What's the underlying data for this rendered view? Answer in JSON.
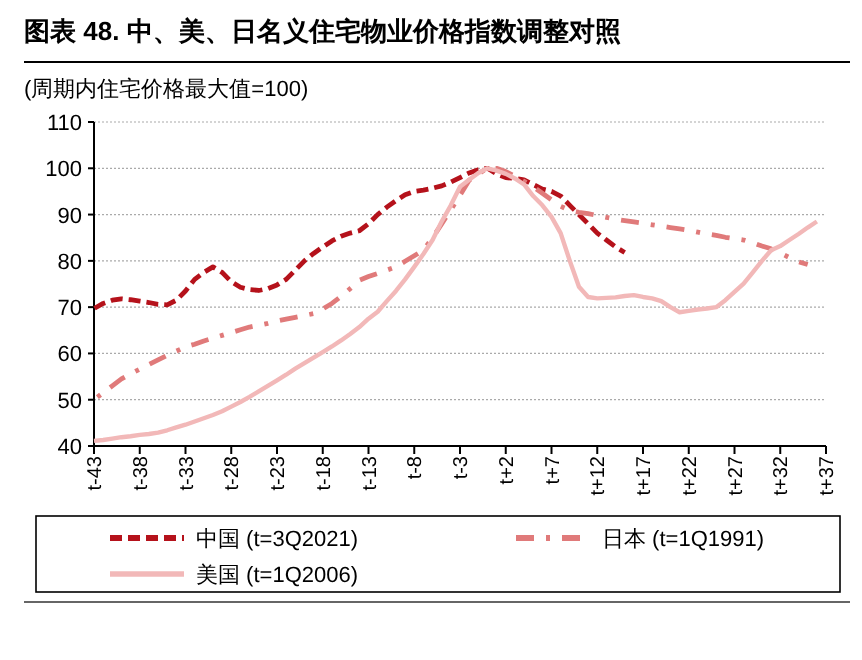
{
  "chart_data": {
    "type": "line",
    "title": "图表 48. 中、美、日名义住宅物业价格指数调整对照",
    "ylabel": "(周期内住宅价格最大值=100)",
    "categories": [
      "t-43",
      null,
      null,
      null,
      null,
      "t-38",
      null,
      null,
      null,
      null,
      "t-33",
      null,
      null,
      null,
      null,
      "t-28",
      null,
      null,
      null,
      null,
      "t-23",
      null,
      null,
      null,
      null,
      "t-18",
      null,
      null,
      null,
      null,
      "t-13",
      null,
      null,
      null,
      null,
      "t-8",
      null,
      null,
      null,
      null,
      "t-3",
      null,
      null,
      null,
      null,
      "t+2",
      null,
      null,
      null,
      null,
      "t+7",
      null,
      null,
      null,
      null,
      "t+12",
      null,
      null,
      null,
      null,
      "t+17",
      null,
      null,
      null,
      null,
      "t+22",
      null,
      null,
      null,
      null,
      "t+27",
      null,
      null,
      null,
      null,
      "t+32",
      null,
      null,
      null,
      null,
      "t+37"
    ],
    "ylim": [
      40,
      110
    ],
    "yticks": [
      40,
      50,
      60,
      70,
      80,
      90,
      100,
      110
    ],
    "grid": "y",
    "legend": "bottom",
    "series": [
      {
        "name": "中国 (t=3Q2021)",
        "color": "#b5121b",
        "line_style": "dashed",
        "values": [
          69.7,
          70.8,
          71.5,
          71.8,
          71.6,
          71.3,
          71,
          70.6,
          70.5,
          71.5,
          73.5,
          76,
          77.5,
          78.7,
          77.5,
          75.5,
          74.3,
          73.8,
          73.6,
          74,
          74.8,
          76,
          78,
          80,
          81.6,
          83,
          84.3,
          85.3,
          86,
          86.5,
          88,
          90,
          91.6,
          93,
          94.3,
          95,
          95.3,
          95.7,
          96.2,
          97,
          98,
          99,
          99.7,
          100,
          98.8,
          98,
          97.8,
          97.5,
          96.5,
          95.5,
          95,
          94,
          92,
          90,
          88,
          86,
          84.5,
          83,
          81.8,
          null,
          null,
          null,
          null,
          null,
          null,
          null,
          null,
          null,
          null,
          null,
          null,
          null,
          null,
          null,
          null,
          null,
          null,
          null,
          null,
          null,
          null
        ]
      },
      {
        "name": "日本 (t=1Q1991)",
        "color": "#e07a7a",
        "line_style": "dashdot",
        "values": [
          50,
          51.5,
          53,
          54.5,
          55.6,
          56.6,
          57.6,
          58.6,
          59.6,
          60.5,
          61.4,
          62,
          62.7,
          63.3,
          63.9,
          64.5,
          65.1,
          65.7,
          66.1,
          66.5,
          67,
          67.4,
          67.8,
          68.2,
          68.6,
          69.6,
          70.8,
          72.3,
          74,
          75.8,
          76.6,
          77.3,
          78,
          78.7,
          79.9,
          81.1,
          82.3,
          85,
          88,
          91,
          94.2,
          97.4,
          98.8,
          100,
          100,
          99.3,
          98.3,
          97.2,
          96,
          94.6,
          93.2,
          91.8,
          90.9,
          90.5,
          90.2,
          89.8,
          89.4,
          89,
          88.7,
          88.4,
          88.1,
          87.8,
          87.5,
          87.2,
          86.9,
          86.6,
          86.2,
          85.8,
          85.5,
          85.1,
          84.8,
          84.5,
          83.9,
          83.2,
          82.6,
          81.7,
          80.7,
          79.8,
          79.2,
          null,
          null
        ]
      },
      {
        "name": "美国 (t=1Q2006)",
        "color": "#f2b8b8",
        "line_style": "solid",
        "values": [
          41.1,
          41.3,
          41.6,
          41.9,
          42.1,
          42.4,
          42.6,
          42.9,
          43.4,
          44,
          44.6,
          45.3,
          46,
          46.7,
          47.5,
          48.5,
          49.5,
          50.6,
          51.8,
          53,
          54.2,
          55.4,
          56.7,
          57.9,
          59.1,
          60.3,
          61.5,
          62.8,
          64.2,
          65.7,
          67.5,
          69,
          71.3,
          73.5,
          76,
          78.7,
          81.5,
          84.5,
          88.5,
          92,
          96,
          97.5,
          99,
          100,
          99.5,
          98.8,
          97.8,
          96.5,
          94,
          92,
          89.5,
          86,
          80,
          74.4,
          72.2,
          71.9,
          72,
          72.1,
          72.4,
          72.6,
          72.2,
          71.9,
          71.3,
          70,
          68.9,
          69.2,
          69.5,
          69.7,
          70,
          71.5,
          73.3,
          75.1,
          77.5,
          80,
          82.3,
          83.2,
          84.5,
          85.8,
          87.2,
          88.5,
          null
        ]
      }
    ]
  }
}
